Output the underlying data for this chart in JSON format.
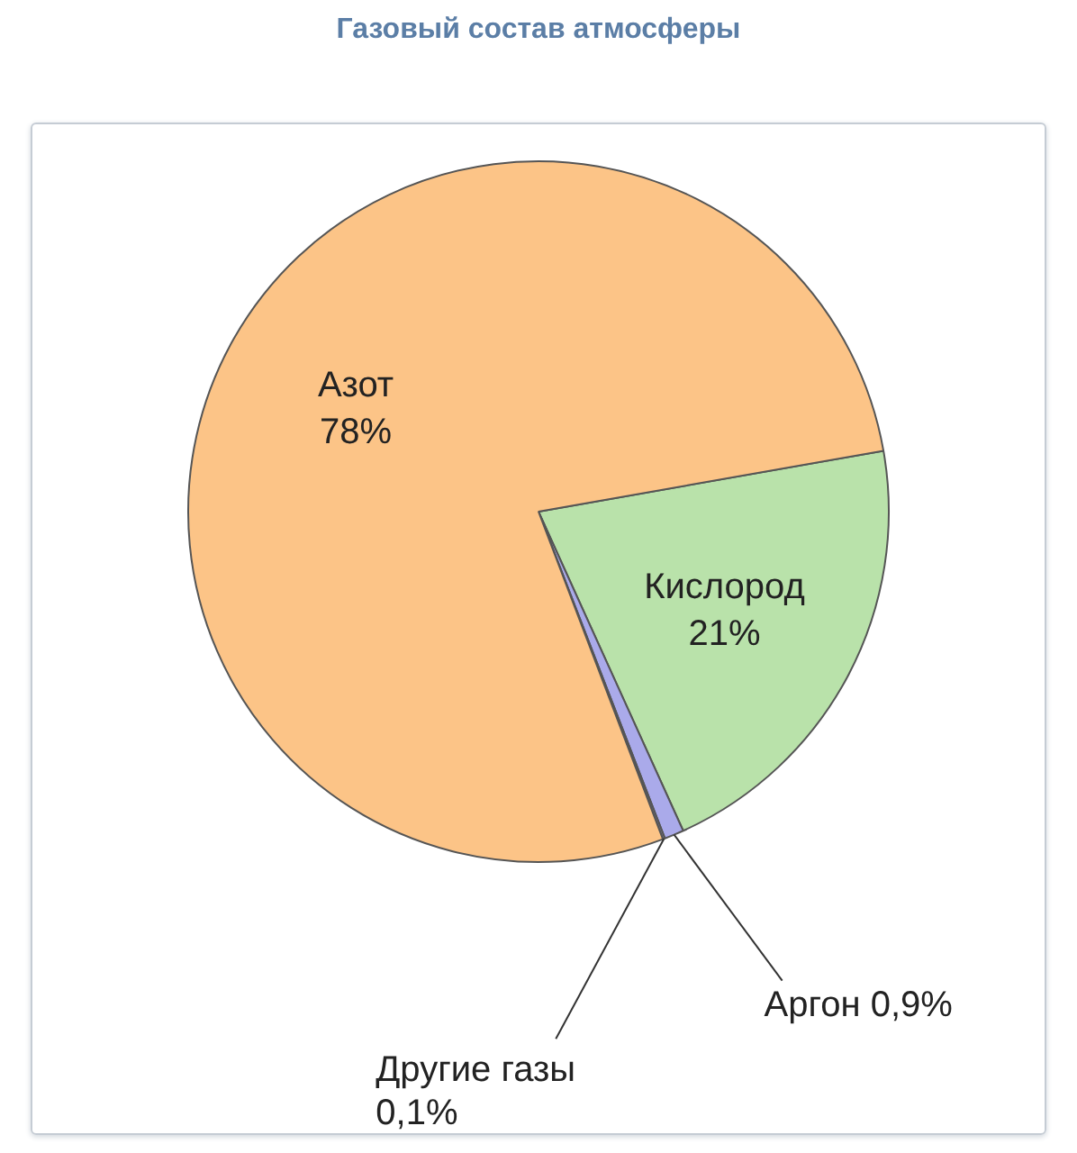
{
  "chart_data": {
    "type": "pie",
    "title": "Газовый состав атмосферы",
    "categories": [
      "Кислород",
      "Аргон",
      "Другие газы",
      "Азот"
    ],
    "values": [
      21,
      0.9,
      0.1,
      78
    ],
    "value_labels": [
      "21%",
      "0,9%",
      "0,1%",
      "78%"
    ],
    "colors": [
      "#b9e2aa",
      "#aaaaea",
      "#8c8cc8",
      "#fcc487"
    ],
    "legend": false
  }
}
